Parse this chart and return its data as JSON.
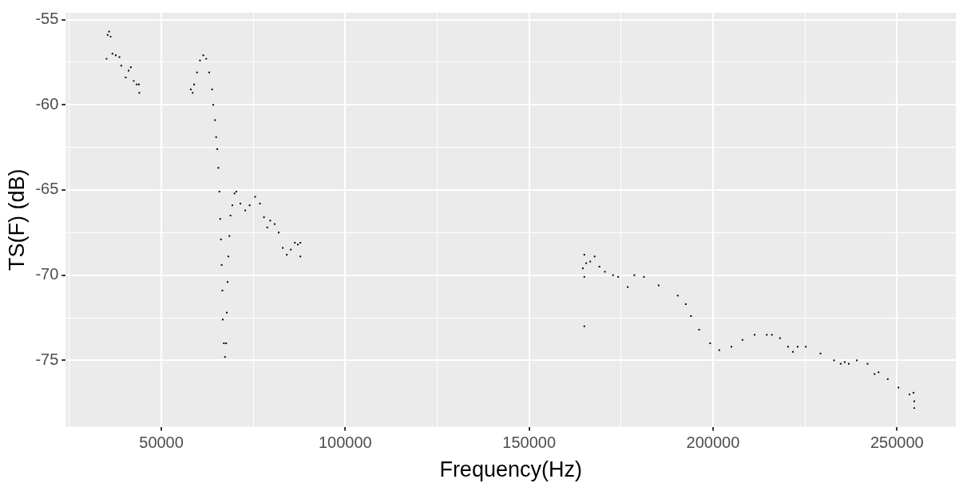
{
  "chart_data": {
    "type": "scatter",
    "xlabel": "Frequency(Hz)",
    "ylabel": "TS(F) (dB)",
    "xlim": [
      24000,
      266000
    ],
    "ylim": [
      -78.9,
      -54.6
    ],
    "xticks": [
      {
        "value": 25000,
        "label": null
      },
      50000,
      {
        "value": 75000,
        "label": null
      },
      100000,
      {
        "value": 125000,
        "label": null
      },
      150000,
      {
        "value": 175000,
        "label": null
      },
      200000,
      {
        "value": 225000,
        "label": null
      },
      250000
    ],
    "yticks": [
      -75,
      {
        "value": -72.5,
        "label": null
      },
      -70,
      {
        "value": -67.5,
        "label": null
      },
      -65,
      {
        "value": -62.5,
        "label": null
      },
      -60,
      {
        "value": -57.5,
        "label": null
      },
      -55
    ],
    "grid": true,
    "legend": false,
    "marker": "square",
    "series": [
      {
        "color": "#000000",
        "x": [
          35100,
          35400,
          35800,
          36200,
          36700,
          37600,
          38600,
          39100,
          40300,
          41100,
          41700,
          42500,
          43300,
          43900,
          44000,
          58000,
          58500,
          58900,
          59700,
          60500,
          61400,
          62200,
          63000,
          63800,
          64100,
          64600,
          64900,
          65200,
          65500,
          65800,
          66000,
          66200,
          66400,
          66600,
          66700,
          67000,
          67300,
          67600,
          67800,
          68000,
          68200,
          68500,
          68800,
          69300,
          69900,
          70400,
          71500,
          72800,
          74000,
          75500,
          76800,
          77900,
          78800,
          79600,
          80800,
          81900,
          83000,
          84100,
          85200,
          86300,
          87100,
          87800,
          87800,
          165000,
          165000,
          165000,
          164600,
          165500,
          166600,
          167800,
          169100,
          170600,
          172800,
          174200,
          176800,
          178600,
          181200,
          185200,
          190400,
          192600,
          194000,
          196200,
          199200,
          201700,
          205000,
          208000,
          211300,
          214600,
          216000,
          218200,
          220400,
          221700,
          223000,
          225200,
          229200,
          232900,
          234700,
          235800,
          236900,
          239100,
          242000,
          243900,
          245000,
          247500,
          250400,
          253400,
          254500,
          254700,
          254700
        ],
        "values": [
          -57.3,
          -55.9,
          -55.7,
          -56.0,
          -57.0,
          -57.1,
          -57.2,
          -57.7,
          -58.4,
          -58.0,
          -57.8,
          -58.6,
          -58.8,
          -58.8,
          -59.3,
          -59.1,
          -59.3,
          -58.8,
          -58.1,
          -57.4,
          -57.1,
          -57.3,
          -58.1,
          -59.1,
          -60.0,
          -60.9,
          -61.9,
          -62.6,
          -63.7,
          -65.1,
          -66.7,
          -67.9,
          -69.4,
          -70.9,
          -72.6,
          -74.0,
          -74.8,
          -74.0,
          -72.2,
          -70.4,
          -68.9,
          -67.7,
          -66.5,
          -65.9,
          -65.2,
          -65.1,
          -65.8,
          -66.2,
          -65.9,
          -65.4,
          -65.8,
          -66.6,
          -67.2,
          -66.8,
          -67.0,
          -67.5,
          -68.4,
          -68.8,
          -68.5,
          -68.1,
          -68.2,
          -68.1,
          -68.9,
          -73.0,
          -68.8,
          -70.1,
          -69.6,
          -69.3,
          -69.2,
          -68.9,
          -69.5,
          -69.8,
          -70.0,
          -70.1,
          -70.7,
          -70.0,
          -70.1,
          -70.6,
          -71.2,
          -71.7,
          -72.4,
          -73.2,
          -74.0,
          -74.4,
          -74.2,
          -73.8,
          -73.5,
          -73.5,
          -73.5,
          -73.7,
          -74.2,
          -74.5,
          -74.2,
          -74.2,
          -74.6,
          -75.0,
          -75.2,
          -75.1,
          -75.2,
          -75.0,
          -75.2,
          -75.8,
          -75.7,
          -76.1,
          -76.6,
          -77.0,
          -76.9,
          -77.4,
          -77.8
        ]
      }
    ]
  }
}
